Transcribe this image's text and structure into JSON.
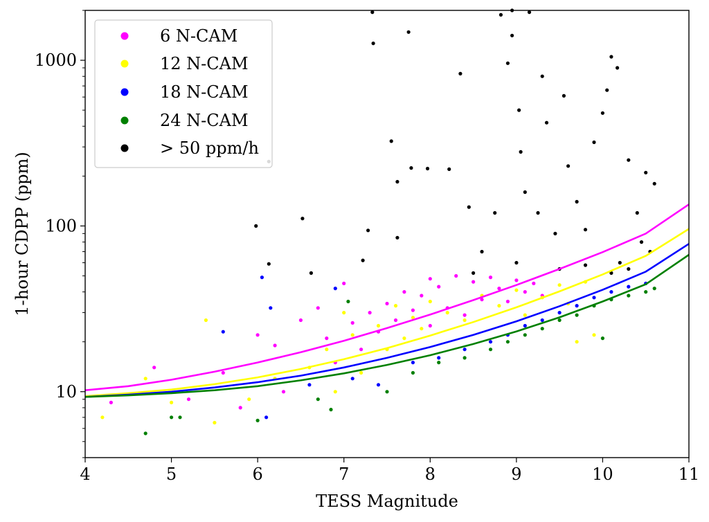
{
  "chart_data": {
    "type": "scatter",
    "title": "",
    "xlabel": "TESS Magnitude",
    "ylabel": "1-hour CDPP (ppm)",
    "xlim": [
      4,
      11
    ],
    "ylim": [
      4,
      2000
    ],
    "yscale": "log",
    "x_ticks": [
      "4",
      "5",
      "6",
      "7",
      "8",
      "9",
      "10",
      "11"
    ],
    "y_ticks": [
      "10",
      "100",
      "1000"
    ],
    "grid": false,
    "legend_placement": "top-left",
    "series": [
      {
        "name": "6 N-CAM",
        "color": "#ff00ff",
        "points": [
          [
            4.3,
            8.6
          ],
          [
            4.8,
            14
          ],
          [
            5.2,
            9
          ],
          [
            5.6,
            13
          ],
          [
            5.8,
            8
          ],
          [
            6.0,
            22
          ],
          [
            6.2,
            19
          ],
          [
            6.3,
            10
          ],
          [
            6.5,
            27
          ],
          [
            6.7,
            32
          ],
          [
            6.8,
            21
          ],
          [
            6.9,
            15
          ],
          [
            7.0,
            45
          ],
          [
            7.1,
            26
          ],
          [
            7.2,
            18
          ],
          [
            7.3,
            30
          ],
          [
            7.4,
            23
          ],
          [
            7.5,
            34
          ],
          [
            7.6,
            27
          ],
          [
            7.7,
            40
          ],
          [
            7.8,
            31
          ],
          [
            7.9,
            38
          ],
          [
            8.0,
            48
          ],
          [
            8.0,
            25
          ],
          [
            8.1,
            43
          ],
          [
            8.2,
            32
          ],
          [
            8.3,
            50
          ],
          [
            8.4,
            29
          ],
          [
            8.5,
            46
          ],
          [
            8.6,
            36
          ],
          [
            8.7,
            49
          ],
          [
            8.8,
            42
          ],
          [
            8.9,
            35
          ],
          [
            9.0,
            47
          ],
          [
            9.1,
            40
          ],
          [
            9.2,
            45
          ],
          [
            9.3,
            38
          ]
        ]
      },
      {
        "name": "12 N-CAM",
        "color": "#ffff00",
        "points": [
          [
            4.2,
            7
          ],
          [
            4.7,
            12
          ],
          [
            5.0,
            8.6
          ],
          [
            5.4,
            27
          ],
          [
            5.5,
            6.5
          ],
          [
            5.9,
            9
          ],
          [
            6.2,
            12
          ],
          [
            6.6,
            14
          ],
          [
            6.8,
            18
          ],
          [
            6.9,
            10
          ],
          [
            7.0,
            30
          ],
          [
            7.1,
            22
          ],
          [
            7.2,
            13
          ],
          [
            7.4,
            25
          ],
          [
            7.5,
            18
          ],
          [
            7.6,
            33
          ],
          [
            7.7,
            21
          ],
          [
            7.8,
            28
          ],
          [
            7.9,
            24
          ],
          [
            8.0,
            35
          ],
          [
            8.2,
            30
          ],
          [
            8.4,
            27
          ],
          [
            8.6,
            38
          ],
          [
            8.8,
            33
          ],
          [
            9.0,
            41
          ],
          [
            9.1,
            29
          ],
          [
            9.3,
            37
          ],
          [
            9.5,
            44
          ],
          [
            9.6,
            34
          ],
          [
            9.8,
            46
          ],
          [
            9.9,
            22
          ],
          [
            9.7,
            20
          ]
        ]
      },
      {
        "name": "18 N-CAM",
        "color": "#0000ff",
        "points": [
          [
            5.6,
            23
          ],
          [
            6.05,
            49
          ],
          [
            6.15,
            32
          ],
          [
            6.1,
            7
          ],
          [
            6.6,
            11
          ],
          [
            6.9,
            42
          ],
          [
            7.1,
            12
          ],
          [
            7.4,
            11
          ],
          [
            7.8,
            15
          ],
          [
            8.1,
            16
          ],
          [
            8.4,
            18
          ],
          [
            8.7,
            20
          ],
          [
            8.9,
            22
          ],
          [
            9.1,
            25
          ],
          [
            9.3,
            27
          ],
          [
            9.5,
            30
          ],
          [
            9.7,
            33
          ],
          [
            9.9,
            37
          ],
          [
            10.1,
            40
          ],
          [
            10.3,
            43
          ],
          [
            10.5,
            45
          ]
        ]
      },
      {
        "name": "24 N-CAM",
        "color": "#008000",
        "points": [
          [
            4.7,
            5.6
          ],
          [
            5.0,
            7
          ],
          [
            5.1,
            7
          ],
          [
            6.0,
            6.7
          ],
          [
            6.7,
            9
          ],
          [
            6.85,
            7.8
          ],
          [
            7.05,
            35
          ],
          [
            7.5,
            10
          ],
          [
            7.8,
            13
          ],
          [
            8.1,
            15
          ],
          [
            8.4,
            16
          ],
          [
            8.7,
            18
          ],
          [
            8.9,
            20
          ],
          [
            9.1,
            22
          ],
          [
            9.3,
            24
          ],
          [
            9.5,
            27
          ],
          [
            9.7,
            29
          ],
          [
            9.9,
            33
          ],
          [
            10.0,
            21
          ],
          [
            10.1,
            36
          ],
          [
            10.3,
            38
          ],
          [
            10.5,
            40
          ],
          [
            10.6,
            42
          ]
        ]
      },
      {
        "name": "> 50 ppm/h",
        "color": "#000000",
        "points": [
          [
            5.98,
            100
          ],
          [
            6.13,
            59
          ],
          [
            6.13,
            245
          ],
          [
            6.52,
            111
          ],
          [
            6.62,
            52
          ],
          [
            7.22,
            62
          ],
          [
            7.28,
            94
          ],
          [
            7.33,
            1950
          ],
          [
            7.34,
            1265
          ],
          [
            7.55,
            325
          ],
          [
            7.62,
            185
          ],
          [
            7.62,
            85
          ],
          [
            7.75,
            1480
          ],
          [
            7.78,
            224
          ],
          [
            7.97,
            222
          ],
          [
            8.22,
            220
          ],
          [
            8.35,
            830
          ],
          [
            8.45,
            130
          ],
          [
            8.6,
            70
          ],
          [
            8.75,
            120
          ],
          [
            8.82,
            1880
          ],
          [
            8.9,
            960
          ],
          [
            8.95,
            1410
          ],
          [
            8.95,
            2000
          ],
          [
            9.03,
            500
          ],
          [
            9.05,
            280
          ],
          [
            9.1,
            160
          ],
          [
            9.15,
            1950
          ],
          [
            9.25,
            120
          ],
          [
            9.3,
            800
          ],
          [
            9.35,
            420
          ],
          [
            9.45,
            90
          ],
          [
            9.55,
            610
          ],
          [
            9.6,
            230
          ],
          [
            9.7,
            140
          ],
          [
            9.8,
            95
          ],
          [
            9.9,
            320
          ],
          [
            10.0,
            480
          ],
          [
            10.05,
            660
          ],
          [
            10.1,
            1050
          ],
          [
            10.17,
            900
          ],
          [
            10.3,
            250
          ],
          [
            10.4,
            120
          ],
          [
            10.45,
            80
          ],
          [
            10.5,
            210
          ],
          [
            10.55,
            70
          ],
          [
            10.6,
            180
          ],
          [
            10.2,
            60
          ],
          [
            10.3,
            55
          ],
          [
            9.5,
            55
          ],
          [
            9.0,
            60
          ],
          [
            8.5,
            52
          ],
          [
            9.8,
            58
          ],
          [
            10.1,
            52
          ]
        ]
      }
    ],
    "fit_curves": [
      {
        "name": "6 N-CAM",
        "color": "#ff00ff",
        "x": [
          4,
          4.5,
          5,
          5.5,
          6,
          6.5,
          7,
          7.5,
          8,
          8.5,
          9,
          9.5,
          10,
          10.5,
          11
        ],
        "y": [
          10.2,
          10.8,
          11.8,
          13.2,
          15,
          17.3,
          20.3,
          24.2,
          29.2,
          35.7,
          44,
          55,
          69.5,
          90,
          135
        ]
      },
      {
        "name": "12 N-CAM",
        "color": "#ffff00",
        "x": [
          4,
          4.5,
          5,
          5.5,
          6,
          6.5,
          7,
          7.5,
          8,
          8.5,
          9,
          9.5,
          10,
          10.5,
          11
        ],
        "y": [
          9.4,
          9.8,
          10.3,
          11.1,
          12.2,
          13.7,
          15.7,
          18.3,
          21.8,
          26.3,
          32.3,
          40.3,
          51,
          66,
          96
        ]
      },
      {
        "name": "18 N-CAM",
        "color": "#0000ff",
        "x": [
          4,
          4.5,
          5,
          5.5,
          6,
          6.5,
          7,
          7.5,
          8,
          8.5,
          9,
          9.5,
          10,
          10.5,
          11
        ],
        "y": [
          9.3,
          9.6,
          10.0,
          10.6,
          11.4,
          12.5,
          14.0,
          16.0,
          18.6,
          22.0,
          26.6,
          32.8,
          41.2,
          53,
          78
        ]
      },
      {
        "name": "24 N-CAM",
        "color": "#008000",
        "x": [
          4,
          4.5,
          5,
          5.5,
          6,
          6.5,
          7,
          7.5,
          8,
          8.5,
          9,
          9.5,
          10,
          10.5,
          11
        ],
        "y": [
          9.3,
          9.5,
          9.8,
          10.2,
          10.8,
          11.7,
          12.9,
          14.5,
          16.6,
          19.4,
          23.1,
          28.1,
          35,
          44.5,
          67
        ]
      }
    ]
  }
}
